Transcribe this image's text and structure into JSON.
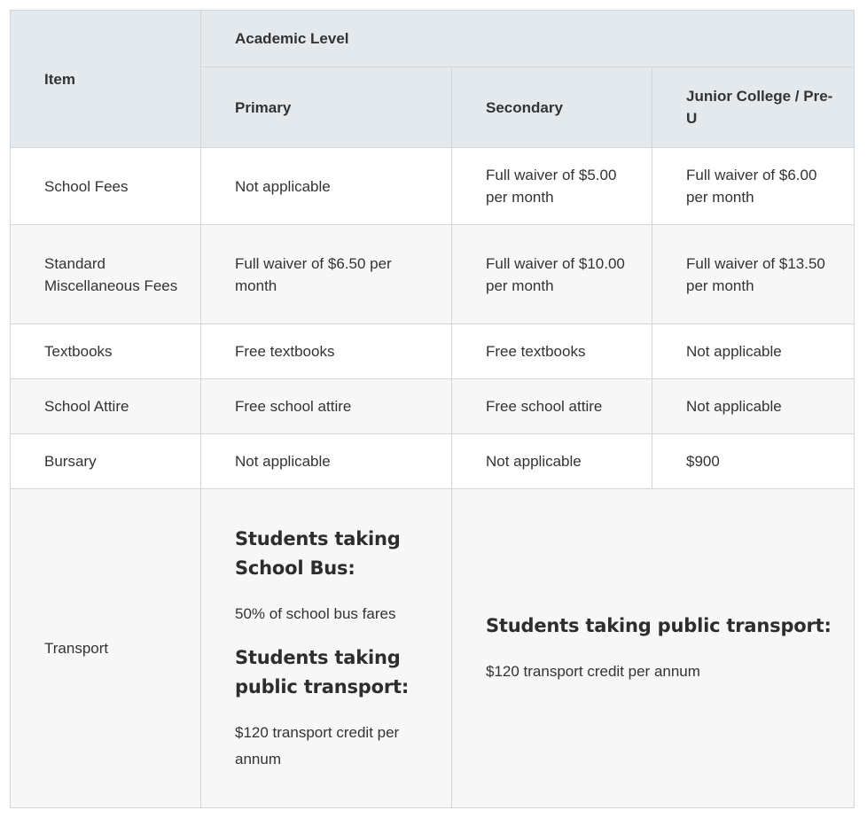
{
  "header": {
    "item": "Item",
    "academic_level": "Academic Level",
    "primary": "Primary",
    "secondary": "Secondary",
    "junior_college": "Junior College / Pre-U"
  },
  "rows": {
    "school_fees": {
      "item": "School Fees",
      "primary": "Not applicable",
      "secondary": "Full waiver of $5.00 per month",
      "junior_college": "Full waiver of $6.00 per month"
    },
    "misc_fees": {
      "item": "Standard Miscellaneous Fees",
      "primary": "Full waiver of $6.50 per month",
      "secondary": "Full waiver of $10.00 per month",
      "junior_college": "Full waiver of $13.50 per month"
    },
    "textbooks": {
      "item": "Textbooks",
      "primary": "Free textbooks",
      "secondary": "Free textbooks",
      "junior_college": "Not applicable"
    },
    "attire": {
      "item": "School Attire",
      "primary": "Free school attire",
      "secondary": "Free school attire",
      "junior_college": "Not applicable"
    },
    "bursary": {
      "item": "Bursary",
      "primary": "Not applicable",
      "secondary": "Not applicable",
      "junior_college": "$900"
    },
    "transport": {
      "item": "Transport",
      "primary": {
        "bus_heading": "Students taking School Bus:",
        "bus_text": "50% of school bus fares",
        "public_heading": "Students taking public transport:",
        "public_text": "$120 transport credit per annum"
      },
      "secondary_jc": {
        "public_heading": "Students taking public transport:",
        "public_text": "$120 transport credit per annum"
      }
    }
  }
}
